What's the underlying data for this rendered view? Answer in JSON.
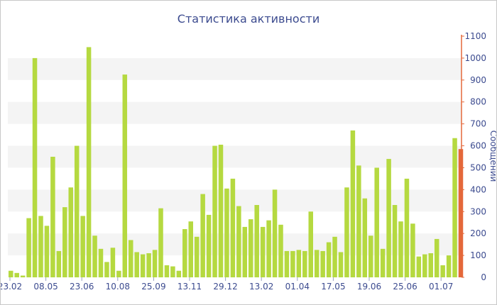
{
  "chart_data": {
    "type": "bar",
    "title": "Статистика активности",
    "ylabel": "Сообщений",
    "xlabel": "",
    "ylim": [
      0,
      1100
    ],
    "yticks": [
      0,
      100,
      200,
      300,
      400,
      500,
      600,
      700,
      800,
      900,
      1000,
      1100
    ],
    "xtick_labels": [
      "23.02",
      "08.05",
      "23.06",
      "10.08",
      "25.09",
      "13.11",
      "29.12",
      "13.02",
      "01.04",
      "17.05",
      "19.06",
      "25.06",
      "01.07"
    ],
    "grid": "horizontal bands",
    "colors": {
      "bar": "#b5d940",
      "last_bar": "#e4683a",
      "axis_line": "#e4683a",
      "band": "#f4f4f4",
      "text": "#3c4b8f"
    },
    "values": [
      30,
      20,
      8,
      270,
      1000,
      280,
      235,
      550,
      120,
      320,
      410,
      600,
      280,
      1050,
      190,
      130,
      70,
      135,
      30,
      925,
      170,
      115,
      105,
      110,
      125,
      315,
      55,
      50,
      30,
      220,
      255,
      185,
      380,
      285,
      600,
      605,
      405,
      450,
      325,
      230,
      265,
      330,
      230,
      260,
      400,
      240,
      120,
      120,
      125,
      120,
      300,
      125,
      120,
      160,
      185,
      115,
      410,
      670,
      510,
      360,
      190,
      500,
      130,
      540,
      330,
      255,
      450,
      245,
      95,
      105,
      110,
      175,
      55,
      100,
      635,
      585
    ],
    "highlight_last": true
  }
}
